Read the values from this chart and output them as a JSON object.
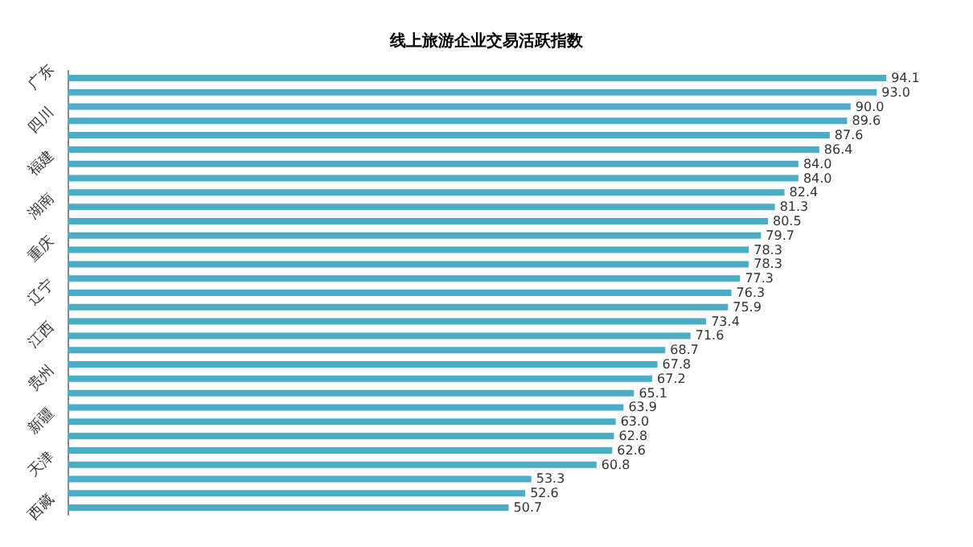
{
  "chart_data": {
    "type": "bar",
    "orientation": "horizontal",
    "title": "线上旅游企业交易活跃指数",
    "categories": [
      "广东",
      null,
      null,
      "四川",
      null,
      null,
      "福建",
      null,
      null,
      "湖南",
      null,
      null,
      "重庆",
      null,
      null,
      "辽宁",
      null,
      null,
      "江西",
      null,
      null,
      "贵州",
      null,
      null,
      "新疆",
      null,
      null,
      "天津",
      null,
      null,
      "西藏"
    ],
    "values": [
      94.1,
      93.0,
      90.0,
      89.6,
      87.6,
      86.4,
      84.0,
      84.0,
      82.4,
      81.3,
      80.5,
      79.7,
      78.3,
      78.3,
      77.3,
      76.3,
      75.9,
      73.4,
      71.6,
      68.7,
      67.8,
      67.2,
      65.1,
      63.9,
      63.0,
      62.8,
      62.6,
      60.8,
      53.3,
      52.6,
      50.7
    ],
    "color": "#4bacc6",
    "data_labels": true,
    "value_labels": [
      "94.1",
      "93.0",
      "90.0",
      "89.6",
      "87.6",
      "86.4",
      "84.0",
      "84.0",
      "82.4",
      "81.3",
      "80.5",
      "79.7",
      "78.3",
      "78.3",
      "77.3",
      "76.3",
      "75.9",
      "73.4",
      "71.6",
      "68.7",
      "67.8",
      "67.2",
      "65.1",
      "63.9",
      "63.0",
      "62.8",
      "62.6",
      "60.8",
      "53.3",
      "52.6",
      "50.7"
    ],
    "grid": false,
    "tick_labels": "y"
  }
}
